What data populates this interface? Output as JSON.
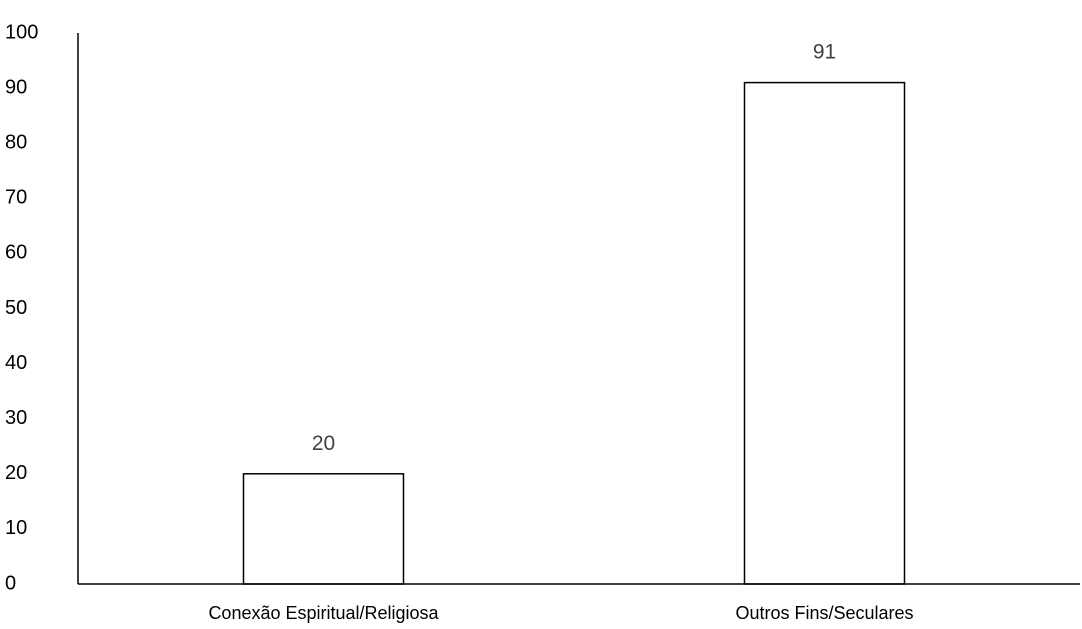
{
  "chart_data": {
    "type": "bar",
    "categories": [
      "Conexão Espiritual/Religiosa",
      "Outros Fins/Seculares"
    ],
    "values": [
      20,
      91
    ],
    "data_labels": [
      "20",
      "91"
    ],
    "ylim": [
      0,
      100
    ],
    "yticks": [
      0,
      10,
      20,
      30,
      40,
      50,
      60,
      70,
      80,
      90,
      100
    ],
    "ytick_labels": [
      "0",
      "10",
      "20",
      "30",
      "40",
      "50",
      "60",
      "70",
      "80",
      "90",
      "100"
    ],
    "title": "",
    "xlabel": "",
    "ylabel": "",
    "grid": false,
    "legend": "none",
    "colors": {
      "bar_fill": "#ffffff",
      "bar_stroke": "#000000",
      "axis": "#000000",
      "data_label": "#404040"
    }
  }
}
